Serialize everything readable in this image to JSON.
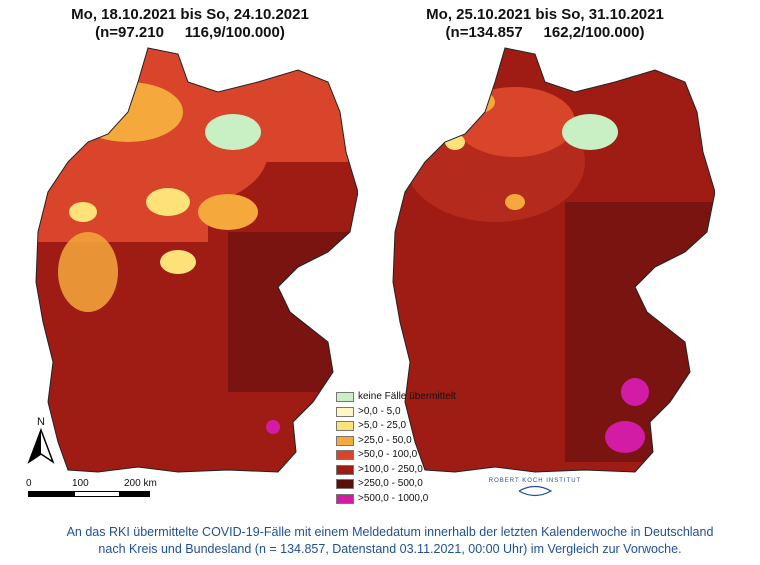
{
  "maps": [
    {
      "title_line1": "Mo, 18.10.2021 bis So, 24.10.2021",
      "title_line2": "(n=97.210     116,9/100.000)"
    },
    {
      "title_line1": "Mo, 25.10.2021 bis So, 31.10.2021",
      "title_line2": "(n=134.857     162,2/100.000)"
    }
  ],
  "legend": {
    "items": [
      {
        "label": "keine Fälle übermittelt",
        "color": "#c9f0c4"
      },
      {
        "label": ">0,0 - 5,0",
        "color": "#fff6c8"
      },
      {
        "label": ">5,0 - 25,0",
        "color": "#fde27a"
      },
      {
        "label": ">25,0 - 50,0",
        "color": "#f5a83c"
      },
      {
        "label": ">50,0 - 100,0",
        "color": "#d9452a"
      },
      {
        "label": ">100,0 - 250,0",
        "color": "#9e1c14"
      },
      {
        "label": ">250,0 - 500,0",
        "color": "#5c0e0c"
      },
      {
        "label": ">500,0 - 1000,0",
        "color": "#d21ca6"
      }
    ]
  },
  "north_label": "N",
  "scale": {
    "tick0": "0",
    "tick1": "100",
    "tick2": "200 km"
  },
  "logo_text": "ROBERT KOCH INSTITUT",
  "caption": {
    "line1": "An das RKI übermittelte COVID-19-Fälle mit einem Meldedatum innerhalb der letzten Kalenderwoche in Deutschland",
    "line2": "nach Kreis und Bundesland (n = 134.857, Datenstand 03.11.2021, 00:00 Uhr) im Vergleich zur Vorwoche."
  }
}
